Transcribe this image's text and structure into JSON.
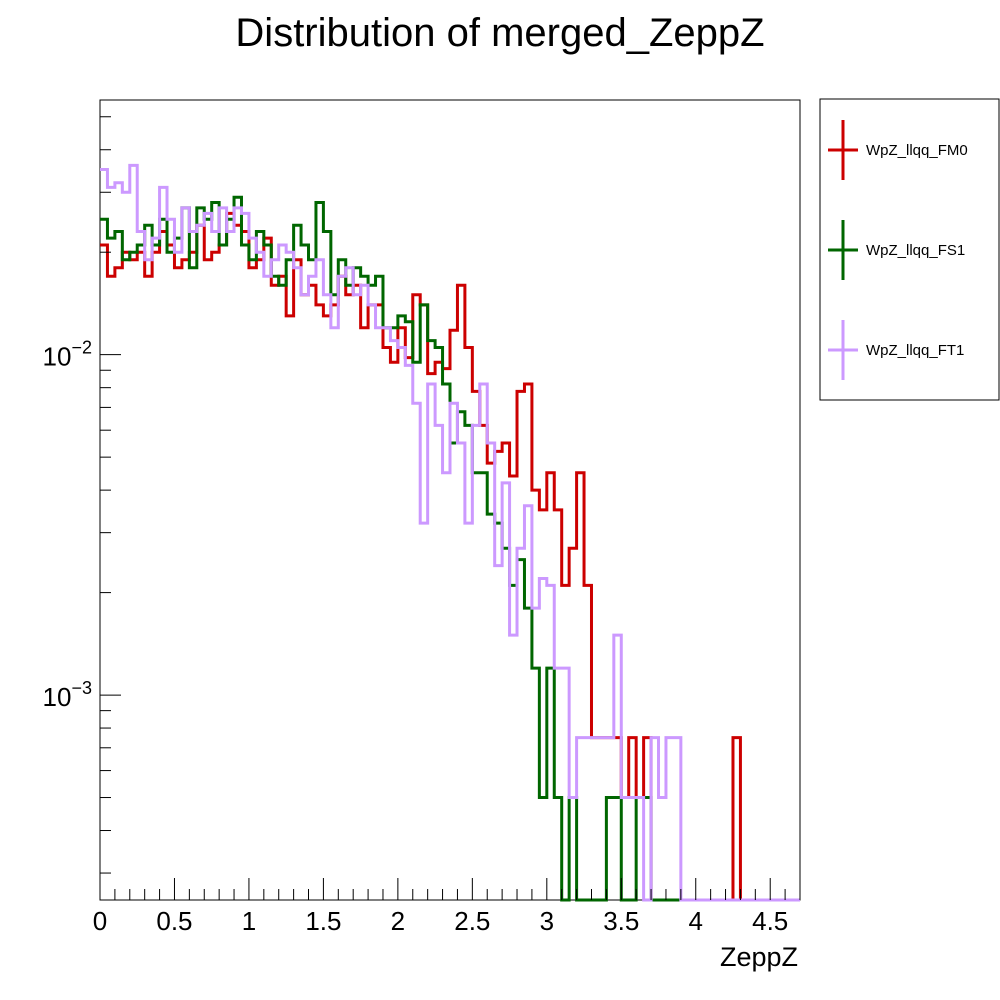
{
  "chart_data": {
    "type": "histogram-step",
    "title": "Distribution of merged_ZeppZ",
    "xlabel": "ZeppZ",
    "ylabel": "",
    "xlim": [
      0,
      4.7
    ],
    "ylim": [
      0.00025,
      0.056
    ],
    "yscale": "log",
    "grid": false,
    "legend_position": "right",
    "bin_width": 0.05,
    "x_ticks": [
      "0",
      "0.5",
      "1",
      "1.5",
      "2",
      "2.5",
      "3",
      "3.5",
      "4",
      "4.5"
    ],
    "x_tick_values": [
      0,
      0.5,
      1,
      1.5,
      2,
      2.5,
      3,
      3.5,
      4,
      4.5
    ],
    "y_ticks": [
      {
        "value": 0.01,
        "base": "10",
        "exp": "−2"
      },
      {
        "value": 0.001,
        "base": "10",
        "exp": "−3"
      }
    ],
    "series": [
      {
        "name": "WpZ_llqq_FM0",
        "color": "#cc0000",
        "values": [
          0.021,
          0.017,
          0.018,
          0.02,
          0.019,
          0.02,
          0.017,
          0.02,
          0.023,
          0.021,
          0.018,
          0.019,
          0.02,
          0.024,
          0.019,
          0.02,
          0.021,
          0.026,
          0.024,
          0.023,
          0.018,
          0.019,
          0.022,
          0.016,
          0.017,
          0.013,
          0.019,
          0.015,
          0.016,
          0.014,
          0.013,
          0.014,
          0.017,
          0.015,
          0.016,
          0.012,
          0.014,
          0.014,
          0.0105,
          0.0095,
          0.012,
          0.0098,
          0.015,
          0.014,
          0.0088,
          0.0095,
          0.0091,
          0.0118,
          0.016,
          0.0105,
          0.0078,
          0.0062,
          0.0048,
          0.0052,
          0.0055,
          0.0044,
          0.0078,
          0.0082,
          0.004,
          0.0035,
          0.0045,
          0.0035,
          0.0021,
          0.0027,
          0.0045,
          0.0021,
          0.00075,
          0.00075,
          0.00075,
          0.00075,
          0.0005,
          0.00075,
          0.0005,
          0.00075,
          0.00025,
          0.00025,
          0.00025,
          0.00025,
          0.00025,
          0.00025,
          0.00025,
          0.00025,
          0.00025,
          0.00025,
          0.00025,
          0.00075,
          0.00025,
          0.00025,
          0.00025,
          0.00025,
          0.00025,
          0.00025,
          0.00025,
          0.00025
        ]
      },
      {
        "name": "WpZ_llqq_FS1",
        "color": "#006600",
        "values": [
          0.025,
          0.022,
          0.023,
          0.019,
          0.02,
          0.021,
          0.024,
          0.021,
          0.025,
          0.02,
          0.022,
          0.027,
          0.018,
          0.027,
          0.025,
          0.028,
          0.021,
          0.025,
          0.029,
          0.021,
          0.019,
          0.023,
          0.021,
          0.017,
          0.016,
          0.019,
          0.024,
          0.021,
          0.019,
          0.028,
          0.023,
          0.015,
          0.019,
          0.016,
          0.018,
          0.017,
          0.016,
          0.017,
          0.012,
          0.012,
          0.013,
          0.0125,
          0.0095,
          0.014,
          0.011,
          0.0105,
          0.0082,
          0.0055,
          0.0068,
          0.0062,
          0.0045,
          0.0045,
          0.0034,
          0.0032,
          0.0027,
          0.0021,
          0.0025,
          0.0018,
          0.0012,
          0.0005,
          0.0012,
          0.0005,
          0.00025,
          0.0005,
          0.00025,
          0.00025,
          0.00025,
          0.00025,
          0.0005,
          0.0005,
          0.00025,
          0.00025,
          0.0005,
          0.0005,
          0.00025,
          0.00025,
          0.00025,
          0.00025,
          0.00025,
          0.00025,
          0.00025,
          0.00025,
          0.00025,
          0.00025,
          0.00025,
          0.00025,
          0.00025,
          0.00025,
          0.00025,
          0.00025,
          0.00025,
          0.00025,
          0.00025,
          0.00025
        ]
      },
      {
        "name": "WpZ_llqq_FT1",
        "color": "#cc99ff",
        "values": [
          0.035,
          0.031,
          0.032,
          0.03,
          0.036,
          0.023,
          0.019,
          0.022,
          0.031,
          0.025,
          0.02,
          0.027,
          0.023,
          0.024,
          0.026,
          0.023,
          0.027,
          0.023,
          0.027,
          0.026,
          0.022,
          0.02,
          0.017,
          0.019,
          0.021,
          0.02,
          0.018,
          0.015,
          0.017,
          0.019,
          0.015,
          0.012,
          0.017,
          0.018,
          0.015,
          0.016,
          0.014,
          0.012,
          0.012,
          0.011,
          0.0105,
          0.0093,
          0.0072,
          0.0032,
          0.0082,
          0.0062,
          0.0045,
          0.0072,
          0.0055,
          0.0032,
          0.0062,
          0.0082,
          0.0055,
          0.0024,
          0.0042,
          0.0015,
          0.0027,
          0.0036,
          0.0018,
          0.0022,
          0.0021,
          0.0012,
          0.0012,
          0.0005,
          0.00075,
          0.00075,
          0.00075,
          0.00075,
          0.00075,
          0.0015,
          0.0005,
          0.0005,
          0.0005,
          0.00025,
          0.00075,
          0.0005,
          0.00075,
          0.00075,
          0.00025,
          0.00025,
          0.00025,
          0.00025,
          0.00025,
          0.00025,
          0.00025,
          0.00025,
          0.00025,
          0.00025,
          0.00025,
          0.00025,
          0.00025,
          0.00025,
          0.00025,
          0.00025
        ]
      }
    ]
  }
}
